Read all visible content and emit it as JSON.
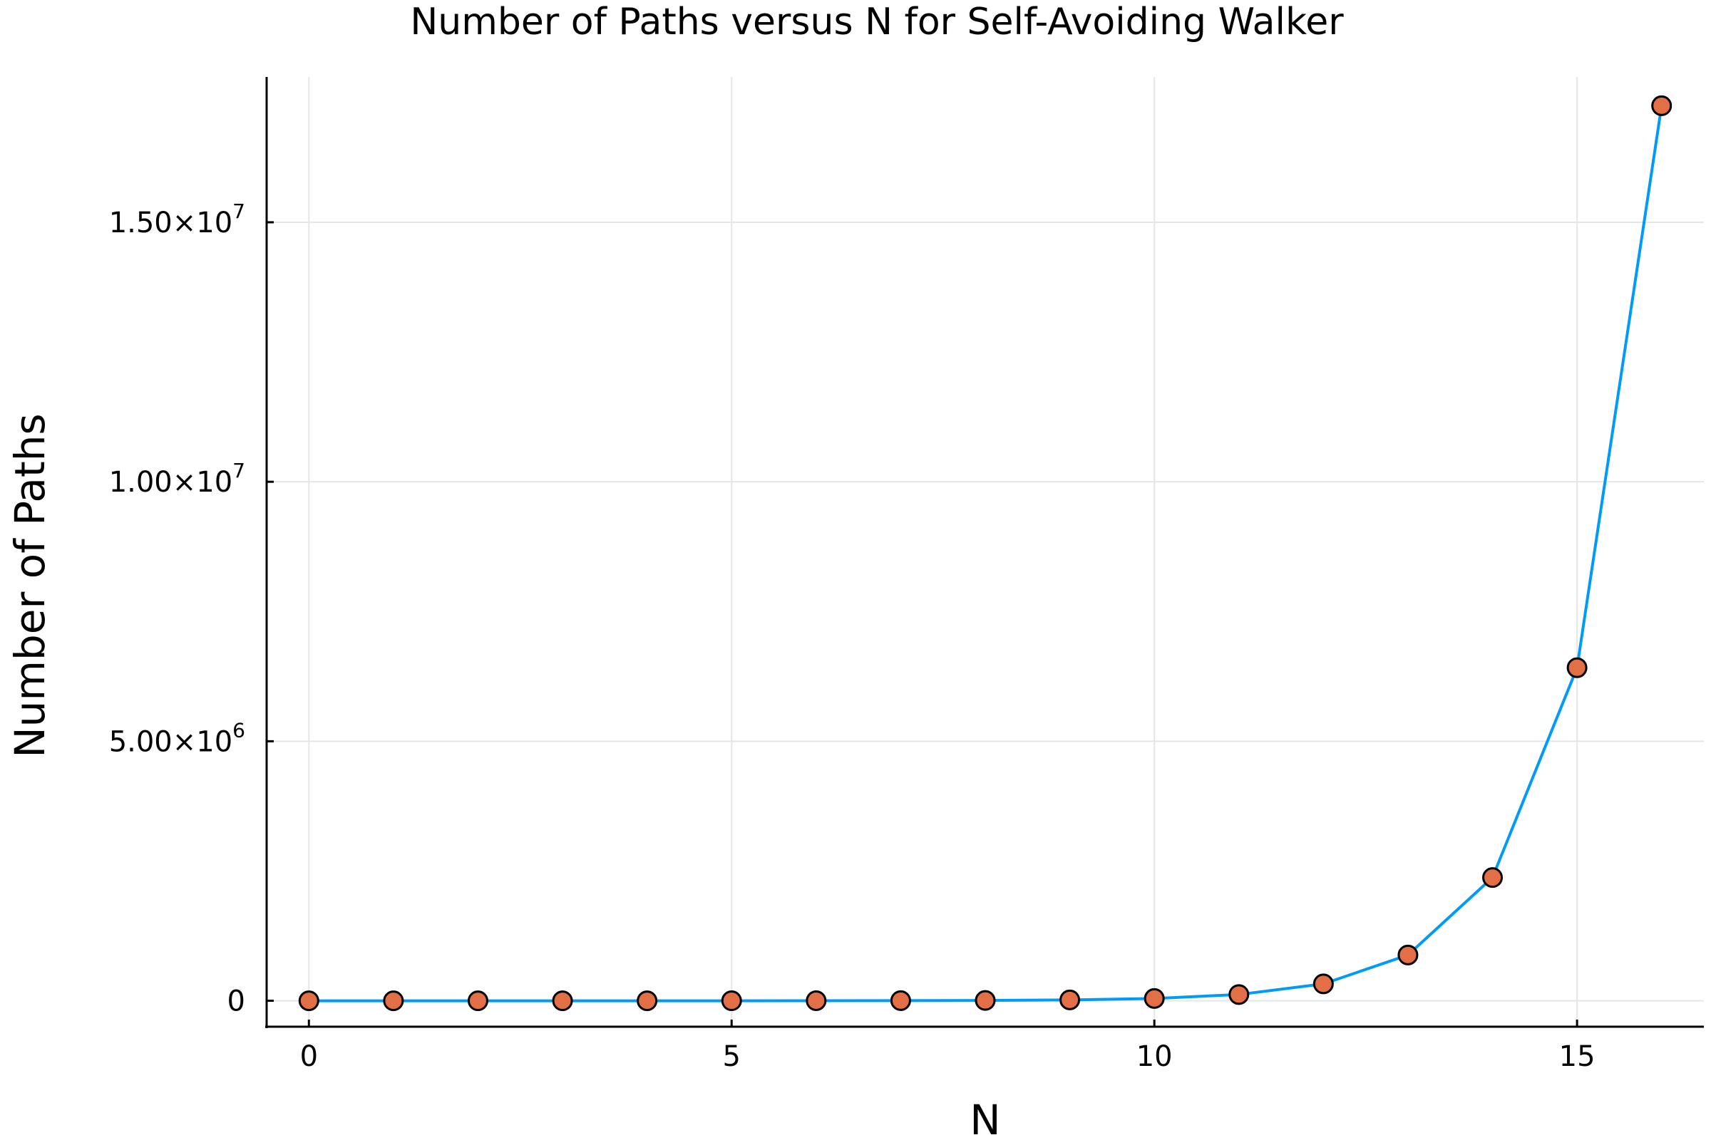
{
  "chart_data": {
    "type": "line",
    "title": "Number of Paths versus N for Self-Avoiding Walker",
    "xlabel": "N",
    "ylabel": "Number of Paths",
    "xlim": [
      -0.5,
      16.5
    ],
    "ylim": [
      -500000,
      17800000
    ],
    "xticks": [
      0,
      5,
      10,
      15
    ],
    "xtick_labels": [
      "0",
      "5",
      "10",
      "15"
    ],
    "yticks": [
      0,
      5000000,
      10000000,
      15000000
    ],
    "ytick_labels": [
      {
        "mantissa": "0",
        "exp": ""
      },
      {
        "mantissa": "5.00×10",
        "exp": "6"
      },
      {
        "mantissa": "1.00×10",
        "exp": "7"
      },
      {
        "mantissa": "1.50×10",
        "exp": "7"
      }
    ],
    "grid": true,
    "legend": "none",
    "series": [
      {
        "line_color": "#009af9",
        "marker_color": "#e26f46",
        "marker_edge": "#000000",
        "x": [
          0,
          1,
          2,
          3,
          4,
          5,
          6,
          7,
          8,
          9,
          10,
          11,
          12,
          13,
          14,
          15,
          16
        ],
        "y": [
          1,
          4,
          12,
          36,
          100,
          284,
          780,
          2172,
          5916,
          16268,
          44100,
          120292,
          324932,
          881500,
          2374444,
          6416596,
          17245332
        ]
      }
    ]
  }
}
